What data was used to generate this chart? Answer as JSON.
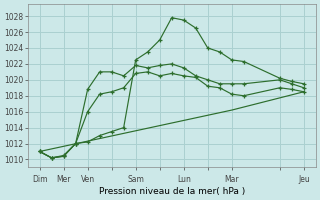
{
  "xlabel": "Pression niveau de la mer( hPa )",
  "bg_color": "#cce8e8",
  "grid_color": "#aad0d0",
  "line_color": "#2d6e2d",
  "ylim": [
    1009,
    1029.5
  ],
  "yticks": [
    1010,
    1012,
    1014,
    1016,
    1018,
    1020,
    1022,
    1024,
    1026,
    1028
  ],
  "xlim": [
    0,
    24
  ],
  "x_tick_positions": [
    1,
    3,
    5,
    7,
    9,
    11,
    13,
    15,
    17,
    21,
    23
  ],
  "x_tick_labels": [
    "Dim",
    "Mer",
    "Ven",
    "",
    "Sam",
    "",
    "Lun",
    "",
    "Mar",
    "",
    "Jeu"
  ],
  "line1_x": [
    1,
    2,
    3,
    4,
    5,
    6,
    7,
    8,
    9,
    10,
    11,
    12,
    13,
    14,
    15,
    16,
    17,
    18,
    21,
    22,
    23
  ],
  "line1_y": [
    1011.0,
    1010.2,
    1010.4,
    1012.0,
    1016.0,
    1018.2,
    1018.5,
    1019.0,
    1020.8,
    1021.0,
    1020.5,
    1020.8,
    1020.5,
    1020.3,
    1019.2,
    1019.0,
    1018.2,
    1018.0,
    1019.0,
    1018.8,
    1018.5
  ],
  "line2_x": [
    1,
    2,
    3,
    4,
    5,
    6,
    7,
    8,
    9,
    10,
    11,
    12,
    13,
    14,
    15,
    16,
    17,
    18,
    21,
    22,
    23
  ],
  "line2_y": [
    1011.0,
    1010.2,
    1010.4,
    1012.0,
    1018.8,
    1021.0,
    1021.0,
    1020.5,
    1021.8,
    1021.5,
    1021.8,
    1022.0,
    1021.5,
    1020.5,
    1020.0,
    1019.5,
    1019.5,
    1019.5,
    1020.0,
    1019.5,
    1019.0
  ],
  "line3_x": [
    1,
    2,
    3,
    4,
    5,
    6,
    7,
    8,
    9,
    10,
    11,
    12,
    13,
    14,
    15,
    16,
    17,
    18,
    21,
    22,
    23
  ],
  "line3_y": [
    1011.0,
    1010.2,
    1010.5,
    1012.0,
    1012.2,
    1013.0,
    1013.5,
    1014.0,
    1022.5,
    1023.5,
    1025.0,
    1027.8,
    1027.5,
    1026.5,
    1024.0,
    1023.5,
    1022.5,
    1022.3,
    1020.2,
    1019.8,
    1019.5
  ],
  "line4_x": [
    1,
    17,
    23
  ],
  "line4_y": [
    1011.0,
    1016.2,
    1018.5
  ]
}
